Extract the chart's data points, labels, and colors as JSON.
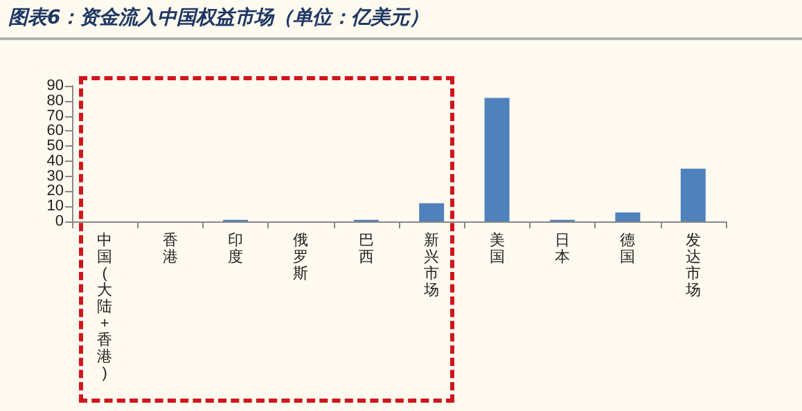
{
  "chart_data": {
    "type": "bar",
    "title": "图表6：资金流入中国权益市场（单位：亿美元）",
    "categories": [
      "中国(大陆+香港)",
      "香港",
      "印度",
      "俄罗斯",
      "巴西",
      "新兴市场",
      "美国",
      "日本",
      "德国",
      "发达市场"
    ],
    "values": [
      0,
      0,
      1,
      0,
      1,
      12,
      82,
      1,
      6,
      35
    ],
    "color": "#4f81bd",
    "ylim": [
      0,
      90
    ],
    "yticks": [
      0,
      10,
      20,
      30,
      40,
      50,
      60,
      70,
      80,
      90
    ],
    "grid": false
  }
}
